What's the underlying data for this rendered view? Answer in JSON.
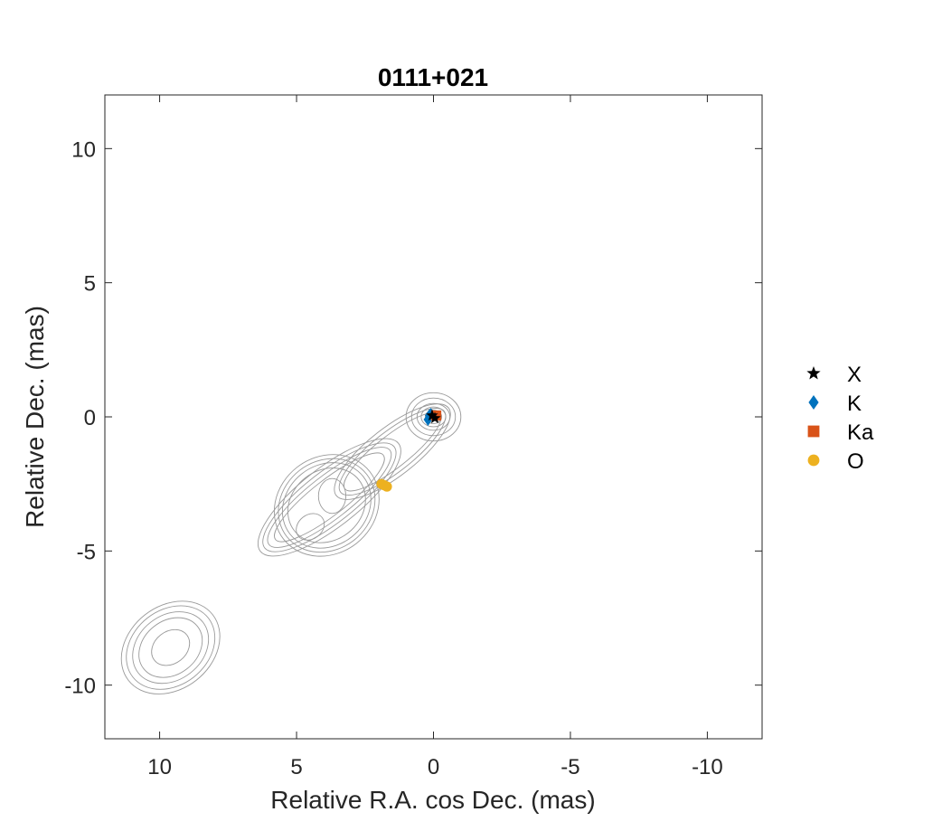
{
  "chart_data": {
    "type": "scatter",
    "title": "0111+021",
    "xlabel": "Relative R.A. cos Dec. (mas)",
    "ylabel": "Relative Dec. (mas)",
    "xlim": [
      12,
      -12
    ],
    "ylim": [
      -12,
      12
    ],
    "x_reversed": true,
    "xticks": [
      10,
      5,
      0,
      -5,
      -10
    ],
    "xtick_labels": [
      "10",
      "5",
      "0",
      "-5",
      "-10"
    ],
    "yticks": [
      10,
      5,
      0,
      -5,
      -10
    ],
    "ytick_labels": [
      "10",
      "5",
      "0",
      "-5",
      "-10"
    ],
    "grid": false,
    "legend_position": "right",
    "series": [
      {
        "name": "X",
        "marker": "star",
        "color": "#000000",
        "points": [
          [
            -0.05,
            -0.05
          ],
          [
            0.05,
            0.05
          ]
        ]
      },
      {
        "name": "K",
        "marker": "diamond",
        "color": "#0072BD",
        "points": [
          [
            0.15,
            0.05
          ],
          [
            0.2,
            -0.1
          ],
          [
            0.1,
            0.1
          ]
        ]
      },
      {
        "name": "Ka",
        "marker": "square",
        "color": "#D95319",
        "points": [
          [
            -0.1,
            0.05
          ]
        ]
      },
      {
        "name": "O",
        "marker": "circle",
        "color": "#EDB120",
        "points": [
          [
            1.9,
            -2.5
          ],
          [
            1.8,
            -2.55
          ],
          [
            1.7,
            -2.6
          ]
        ]
      }
    ],
    "contours": {
      "color": "#9a9a9a",
      "components": [
        {
          "x": 0.0,
          "y": 0.0,
          "levels": [
            [
              1.0,
              0.9
            ],
            [
              0.8,
              0.7
            ],
            [
              0.6,
              0.5
            ],
            [
              0.45,
              0.37
            ],
            [
              0.3,
              0.25
            ]
          ]
        },
        {
          "x": 3.8,
          "y": -3.0,
          "levels": [
            [
              3.2,
              1.1
            ],
            [
              3.0,
              0.95
            ],
            [
              2.8,
              0.8
            ],
            [
              2.5,
              0.65
            ]
          ]
        },
        {
          "x": 3.9,
          "y": -3.3,
          "levels": [
            [
              2.0,
              1.8
            ],
            [
              1.85,
              1.65
            ],
            [
              1.7,
              1.5
            ],
            [
              1.5,
              1.3
            ]
          ]
        },
        {
          "x": 4.5,
          "y": -4.1,
          "levels": [
            [
              0.55,
              0.45
            ]
          ]
        },
        {
          "x": 3.7,
          "y": -2.95,
          "levels": [
            [
              0.5,
              0.65
            ]
          ]
        },
        {
          "x": 9.6,
          "y": -8.6,
          "levels": [
            [
              1.95,
              1.55
            ],
            [
              1.75,
              1.4
            ],
            [
              1.5,
              1.2
            ],
            [
              1.25,
              1.0
            ],
            [
              0.75,
              0.6
            ]
          ]
        },
        {
          "x": 1.5,
          "y": -1.3,
          "levels": [
            [
              2.6,
              0.9
            ],
            [
              2.4,
              0.75
            ],
            [
              2.2,
              0.6
            ]
          ]
        }
      ]
    }
  }
}
